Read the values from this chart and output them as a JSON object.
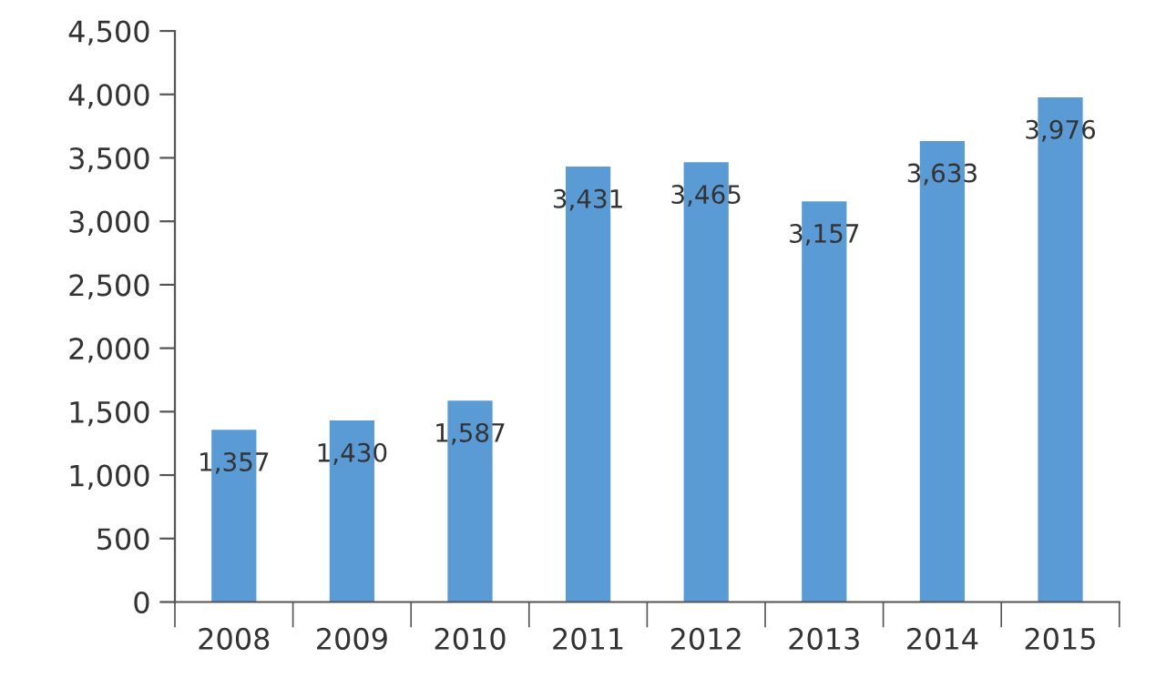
{
  "chart_data": {
    "type": "bar",
    "categories": [
      "2008",
      "2009",
      "2010",
      "2011",
      "2012",
      "2013",
      "2014",
      "2015"
    ],
    "values": [
      1357,
      1430,
      1587,
      3431,
      3465,
      3157,
      3633,
      3976
    ],
    "value_labels": [
      "1,357",
      "1,430",
      "1,587",
      "3,431",
      "3,465",
      "3,157",
      "3,633",
      "3,976"
    ],
    "color": "#5b9bd5",
    "ylim": [
      0,
      4500
    ],
    "yticks": [
      0,
      500,
      {
        "value": 1000,
        "label": "1,000"
      },
      {
        "value": 1500,
        "label": "1,500"
      },
      {
        "value": 2000,
        "label": "2,000"
      },
      {
        "value": 2500,
        "label": "2,500"
      },
      {
        "value": 3000,
        "label": "3,000"
      },
      {
        "value": 3500,
        "label": "3,500"
      },
      {
        "value": 4000,
        "label": "4,000"
      },
      {
        "value": 4500,
        "label": "4,500"
      }
    ],
    "grid": false
  }
}
